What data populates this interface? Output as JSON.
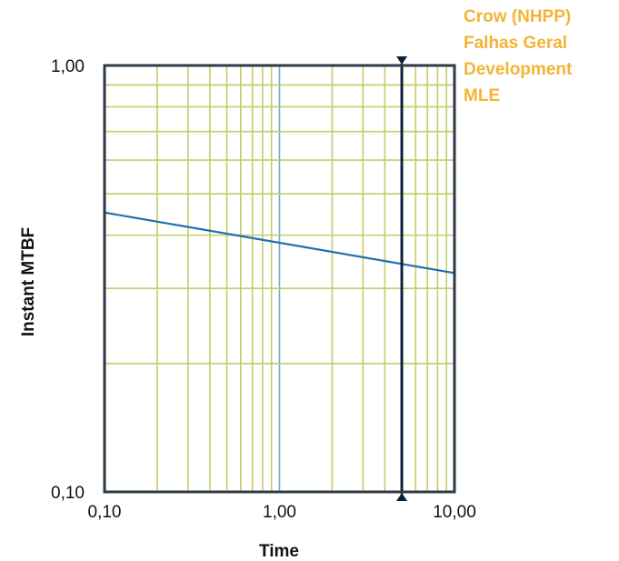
{
  "chart_data": {
    "type": "line",
    "xlabel": "Time",
    "ylabel": "Instant MTBF",
    "x_scale": "log",
    "y_scale": "log",
    "xlim": [
      0.1,
      10
    ],
    "ylim": [
      0.1,
      1
    ],
    "x_tick_labels": [
      "0,10",
      "1,00",
      "10,00"
    ],
    "x_tick_values": [
      0.1,
      1,
      10
    ],
    "y_tick_labels": [
      "0,10",
      "1,00"
    ],
    "y_tick_values": [
      0.1,
      1
    ],
    "grid": true,
    "legend_position": "top-right",
    "legend_lines": [
      "Crow (NHPP)",
      "Falhas Geral",
      "Development",
      "MLE"
    ],
    "series": [
      {
        "x": [
          0.1,
          10
        ],
        "y": [
          0.452,
          0.326
        ]
      }
    ],
    "vertical_marker_x": 5.0,
    "colors": {
      "grid": "#c5cc6a",
      "grid_decade": "#7fa6c9",
      "series": "#1f6fae",
      "marker": "#0d2233",
      "frame": "#2e3b46",
      "legend": "#f5b335"
    }
  }
}
